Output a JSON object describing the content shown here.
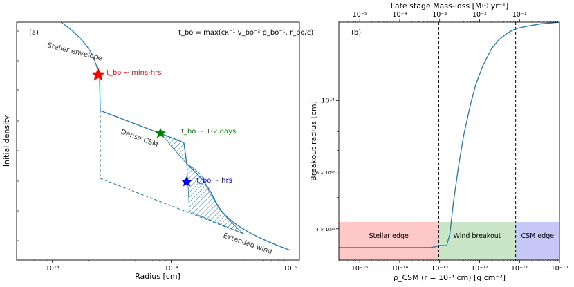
{
  "chart_data": [
    {
      "type": "line",
      "panel_label": "(a)",
      "formula": "t_bo = max(cκ⁻¹ v_bo⁻² ρ_bo⁻¹, r_bo/c)",
      "xlabel": "Radius [cm]",
      "ylabel": "Initial density",
      "xscale": "log",
      "xlim": [
        5000000000000.0,
        1200000000000000.0
      ],
      "xticks": [
        {
          "label": "10¹³",
          "value": 10000000000000.0
        },
        {
          "label": "10¹⁴",
          "value": 100000000000000.0
        },
        {
          "label": "10¹⁵",
          "value": 1000000000000000.0
        }
      ],
      "yticks_shown": false,
      "series": [
        {
          "name": "density profile (solid)",
          "style": "solid",
          "x": [
            8000000000000.0,
            12000000000000.0,
            16000000000000.0,
            20000000000000.0,
            24000000000000.0,
            28000000000000.0,
            31000000000000.0,
            33000000000000.0,
            34000000000000.0,
            34500000000000.0,
            35000000000000.0,
            35000000000000.0,
            50000000000000.0,
            70000000000000.0,
            100000000000000.0,
            130000000000000.0,
            150000000000000.0,
            160000000000000.0,
            165000000000000.0,
            170000000000000.0,
            172000000000000.0,
            180000000000000.0,
            200000000000000.0,
            230000000000000.0,
            270000000000000.0,
            320000000000000.0,
            400000000000000.0,
            600000000000000.0,
            1000000000000000.0
          ]
        },
        {
          "name": "dense CSM, lower boundary (dashed)",
          "style": "dashed",
          "x": [
            35000000000000.0,
            35000000000000.0,
            1000000000000000.0
          ]
        }
      ],
      "markers": [
        {
          "name": "red star",
          "x": 34500000000000.0,
          "label": "t_bo ~ mins-hrs",
          "color": "#ff0000"
        },
        {
          "name": "green star",
          "x": 100000000000000.0,
          "label": "t_bo ~ 1-2 days",
          "color": "#008000"
        },
        {
          "name": "blue star",
          "x": 162000000000000.0,
          "label": "t_bo ~ hrs",
          "color": "#0000ff"
        }
      ],
      "hatched_regions": 2,
      "region_labels": [
        "Steller envelope",
        "Dense CSM",
        "Extended wind"
      ]
    },
    {
      "type": "line",
      "panel_label": "(b)",
      "xlabel": "ρ_CSM (r = 10¹⁴ cm) [g cm⁻³]",
      "top_xlabel": "Late stage Mass-loss [M☉ yr⁻¹]",
      "ylabel": "Breakout radius [cm]",
      "xscale": "log",
      "yscale": "log",
      "xlim": [
        3e-16,
        1e-10
      ],
      "ylim": [
        32000000000000.0,
        175000000000000.0
      ],
      "xticks": [
        {
          "label": "10⁻¹⁵",
          "value": 1e-15
        },
        {
          "label": "10⁻¹⁴",
          "value": 1e-14
        },
        {
          "label": "10⁻¹³",
          "value": 1e-13
        },
        {
          "label": "10⁻¹²",
          "value": 1e-12
        },
        {
          "label": "10⁻¹¹",
          "value": 1e-11
        },
        {
          "label": "10⁻¹⁰",
          "value": 1e-10
        }
      ],
      "top_xticks": [
        {
          "label": "10⁻⁵",
          "at_rho": 1e-15
        },
        {
          "label": "10⁻⁴",
          "at_rho": 1e-14
        },
        {
          "label": "10⁻³",
          "at_rho": 1e-13
        },
        {
          "label": "10⁻²",
          "at_rho": 1e-12
        },
        {
          "label": "10⁻¹",
          "at_rho": 1e-11
        }
      ],
      "yticks": [
        {
          "label": "4 × 10¹³",
          "value": 40000000000000.0
        },
        {
          "label": "6 × 10¹³",
          "value": 60000000000000.0
        },
        {
          "label": "10¹⁴",
          "value": 100000000000000.0
        }
      ],
      "series": [
        {
          "name": "breakout radius",
          "x": [
            3e-16,
            1e-15,
            1e-14,
            6e-14,
            8e-14,
            1e-13,
            1.5e-13,
            1.8e-13,
            2.2e-13,
            3e-13,
            4e-13,
            6e-13,
            8e-13,
            1.2e-12,
            2e-12,
            3e-12,
            5e-12,
            8e-12,
            1.2e-11,
            2e-11,
            3.5e-11,
            6e-11,
            1e-10
          ],
          "y": [
            35000000000000.0,
            35000000000000.0,
            35000000000000.0,
            35000000000000.0,
            35200000000000.0,
            35500000000000.0,
            35500000000000.0,
            38500000000000.0,
            48000000000000.0,
            63000000000000.0,
            78000000000000.0,
            98000000000000.0,
            112000000000000.0,
            128000000000000.0,
            145000000000000.0,
            154000000000000.0,
            162000000000000.0,
            167000000000000.0,
            169000000000000.0,
            171000000000000.0,
            173000000000000.0,
            174000000000000.0,
            175000000000000.0
          ]
        }
      ],
      "vlines": [
        9.5e-14,
        8e-12
      ],
      "regions": [
        {
          "label": "Stellar edge",
          "from": 3e-16,
          "to": 9.5e-14,
          "color": "#ffc8c8"
        },
        {
          "label": "Wind breakout",
          "from": 9.5e-14,
          "to": 8e-12,
          "color": "#c9e6c9"
        },
        {
          "label": "CSM edge",
          "from": 8e-12,
          "to": 1e-10,
          "color": "#c8c8f8"
        }
      ]
    }
  ]
}
